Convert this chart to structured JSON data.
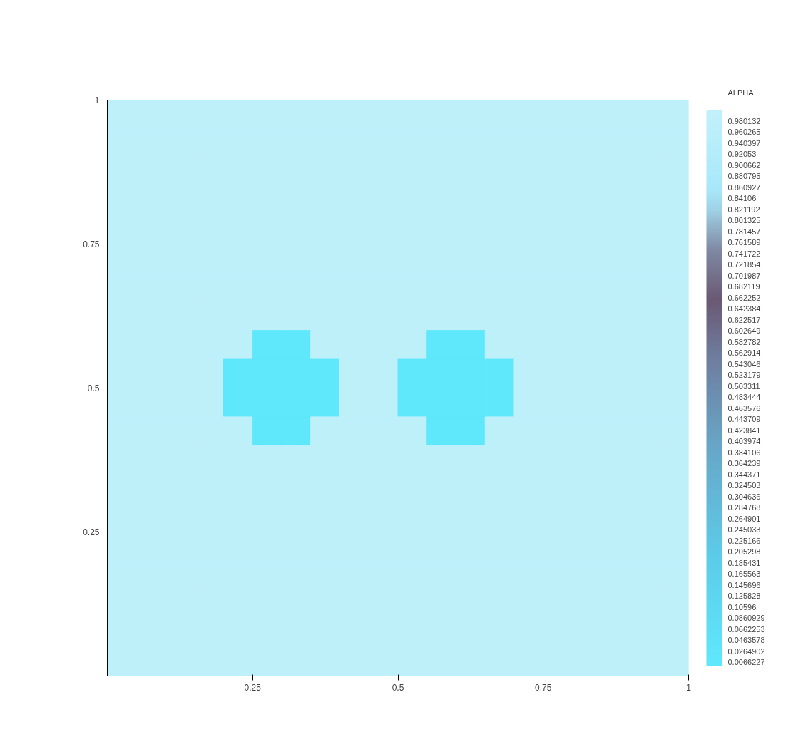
{
  "chart_data": {
    "type": "scatter",
    "marker": "square",
    "clabel": "ALPHA",
    "xlim": [
      0,
      1
    ],
    "xticks": [
      0.25,
      0.5,
      0.75,
      1
    ],
    "ylim": [
      0,
      1
    ],
    "yticks": [
      0.25,
      0.5,
      0.75,
      1
    ],
    "clim": [
      0,
      1
    ],
    "cticks": [
      0.980132,
      0.960265,
      0.940397,
      0.92053,
      0.900662,
      0.880795,
      0.860927,
      0.84106,
      0.821192,
      0.801325,
      0.781457,
      0.761589,
      0.741722,
      0.721854,
      0.701987,
      0.682119,
      0.662252,
      0.642384,
      0.622517,
      0.602649,
      0.582782,
      0.562914,
      0.543046,
      0.523179,
      0.503311,
      0.483444,
      0.463576,
      0.443709,
      0.423841,
      0.403974,
      0.384106,
      0.364239,
      0.344371,
      0.324503,
      0.304636,
      0.284768,
      0.264901,
      0.245033,
      0.225166,
      0.205298,
      0.185431,
      0.165563,
      0.145696,
      0.125828,
      0.10596,
      0.0860929,
      0.0662253,
      0.0463578,
      0.0264902,
      0.0066227
    ],
    "x": [
      0.025,
      0.075,
      0.125,
      0.175,
      0.225,
      0.275,
      0.325,
      0.375,
      0.425,
      0.475,
      0.525,
      0.575,
      0.625,
      0.675,
      0.725,
      0.775,
      0.825,
      0.875,
      0.925,
      0.975,
      0.025,
      0.075,
      0.125,
      0.175,
      0.225,
      0.275,
      0.325,
      0.375,
      0.425,
      0.475,
      0.525,
      0.575,
      0.625,
      0.675,
      0.725,
      0.775,
      0.825,
      0.875,
      0.925,
      0.975,
      0.025,
      0.075,
      0.125,
      0.175,
      0.225,
      0.275,
      0.325,
      0.375,
      0.425,
      0.475,
      0.525,
      0.575,
      0.625,
      0.675,
      0.725,
      0.775,
      0.825,
      0.875,
      0.925,
      0.975,
      0.025,
      0.075,
      0.125,
      0.175,
      0.225,
      0.275,
      0.325,
      0.375,
      0.425,
      0.475,
      0.525,
      0.575,
      0.625,
      0.675,
      0.725,
      0.775,
      0.825,
      0.875,
      0.925,
      0.975,
      0.025,
      0.075,
      0.125,
      0.175,
      0.225,
      0.275,
      0.325,
      0.375,
      0.425,
      0.475,
      0.525,
      0.575,
      0.625,
      0.675,
      0.725,
      0.775,
      0.825,
      0.875,
      0.925,
      0.975,
      0.025,
      0.075,
      0.125,
      0.175,
      0.225,
      0.275,
      0.325,
      0.375,
      0.425,
      0.475,
      0.525,
      0.575,
      0.625,
      0.675,
      0.725,
      0.775,
      0.825,
      0.875,
      0.925,
      0.975,
      0.025,
      0.075,
      0.125,
      0.175,
      0.225,
      0.275,
      0.325,
      0.375,
      0.425,
      0.475,
      0.525,
      0.575,
      0.625,
      0.675,
      0.725,
      0.775,
      0.825,
      0.875,
      0.925,
      0.975,
      0.025,
      0.075,
      0.125,
      0.175,
      0.225,
      0.275,
      0.325,
      0.375,
      0.425,
      0.475,
      0.525,
      0.575,
      0.625,
      0.675,
      0.725,
      0.775,
      0.825,
      0.875,
      0.925,
      0.975,
      0.025,
      0.075,
      0.125,
      0.175,
      0.225,
      0.275,
      0.325,
      0.375,
      0.425,
      0.475,
      0.525,
      0.575,
      0.625,
      0.675,
      0.725,
      0.775,
      0.825,
      0.875,
      0.925,
      0.975,
      0.025,
      0.075,
      0.125,
      0.175,
      0.225,
      0.275,
      0.325,
      0.375,
      0.425,
      0.475,
      0.525,
      0.575,
      0.625,
      0.675,
      0.725,
      0.775,
      0.825,
      0.875,
      0.925,
      0.975,
      0.025,
      0.075,
      0.125,
      0.175,
      0.225,
      0.275,
      0.325,
      0.375,
      0.425,
      0.475,
      0.525,
      0.575,
      0.625,
      0.675,
      0.725,
      0.775,
      0.825,
      0.875,
      0.925,
      0.975,
      0.025,
      0.075,
      0.125,
      0.175,
      0.225,
      0.275,
      0.325,
      0.375,
      0.425,
      0.475,
      0.525,
      0.575,
      0.625,
      0.675,
      0.725,
      0.775,
      0.825,
      0.875,
      0.925,
      0.975,
      0.025,
      0.075,
      0.125,
      0.175,
      0.225,
      0.275,
      0.325,
      0.375,
      0.425,
      0.475,
      0.525,
      0.575,
      0.625,
      0.675,
      0.725,
      0.775,
      0.825,
      0.875,
      0.925,
      0.975,
      0.025,
      0.075,
      0.125,
      0.175,
      0.225,
      0.275,
      0.325,
      0.375,
      0.425,
      0.475,
      0.525,
      0.575,
      0.625,
      0.675,
      0.725,
      0.775,
      0.825,
      0.875,
      0.925,
      0.975,
      0.025,
      0.075,
      0.125,
      0.175,
      0.225,
      0.275,
      0.325,
      0.375,
      0.425,
      0.475,
      0.525,
      0.575,
      0.625,
      0.675,
      0.725,
      0.775,
      0.825,
      0.875,
      0.925,
      0.975,
      0.025,
      0.075,
      0.125,
      0.175,
      0.225,
      0.275,
      0.325,
      0.375,
      0.425,
      0.475,
      0.525,
      0.575,
      0.625,
      0.675,
      0.725,
      0.775,
      0.825,
      0.875,
      0.925,
      0.975,
      0.025,
      0.075,
      0.125,
      0.175,
      0.225,
      0.275,
      0.325,
      0.375,
      0.425,
      0.475,
      0.525,
      0.575,
      0.625,
      0.675,
      0.725,
      0.775,
      0.825,
      0.875,
      0.925,
      0.975,
      0.025,
      0.075,
      0.125,
      0.175,
      0.225,
      0.275,
      0.325,
      0.375,
      0.425,
      0.475,
      0.525,
      0.575,
      0.625,
      0.675,
      0.725,
      0.775,
      0.825,
      0.875,
      0.925,
      0.975,
      0.025,
      0.075,
      0.125,
      0.175,
      0.225,
      0.275,
      0.325,
      0.375,
      0.425,
      0.475,
      0.525,
      0.575,
      0.625,
      0.675,
      0.725,
      0.775,
      0.825,
      0.875,
      0.925,
      0.975,
      0.025,
      0.075,
      0.125,
      0.175,
      0.225,
      0.275,
      0.325,
      0.375,
      0.425,
      0.475,
      0.525,
      0.575,
      0.625,
      0.675,
      0.725,
      0.775,
      0.825,
      0.875,
      0.925,
      0.975
    ],
    "values": [
      0.975,
      0.975,
      0.975,
      0.975,
      0.975,
      0.975,
      0.975,
      0.975,
      0.975,
      0.975,
      0.975,
      0.975,
      0.975,
      0.975,
      0.975,
      0.975,
      0.975,
      0.975,
      0.975,
      0.975,
      0.925,
      0.925,
      0.925,
      0.925,
      0.925,
      0.925,
      0.925,
      0.925,
      0.925,
      0.925,
      0.925,
      0.925,
      0.925,
      0.925,
      0.925,
      0.925,
      0.925,
      0.925,
      0.925,
      0.925,
      0.875,
      0.875,
      0.875,
      0.875,
      0.875,
      0.875,
      0.875,
      0.875,
      0.875,
      0.875,
      0.875,
      0.875,
      0.875,
      0.875,
      0.875,
      0.875,
      0.875,
      0.875,
      0.875,
      0.875,
      0.825,
      0.825,
      0.825,
      0.825,
      0.825,
      0.825,
      0.825,
      0.825,
      0.825,
      0.825,
      0.825,
      0.825,
      0.825,
      0.825,
      0.825,
      0.825,
      0.825,
      0.825,
      0.825,
      0.825,
      0.775,
      0.775,
      0.775,
      0.775,
      0.775,
      0.775,
      0.775,
      0.775,
      0.775,
      0.775,
      0.775,
      0.775,
      0.775,
      0.775,
      0.775,
      0.775,
      0.775,
      0.775,
      0.775,
      0.775,
      0.725,
      0.725,
      0.725,
      0.725,
      0.725,
      0.725,
      0.725,
      0.725,
      0.725,
      0.725,
      0.725,
      0.725,
      0.725,
      0.725,
      0.725,
      0.725,
      0.725,
      0.725,
      0.725,
      0.725,
      0.675,
      0.675,
      0.675,
      0.675,
      0.675,
      0.675,
      0.675,
      0.675,
      0.675,
      0.675,
      0.675,
      0.675,
      0.675,
      0.675,
      0.675,
      0.675,
      0.675,
      0.675,
      0.675,
      0.675,
      0.625,
      0.625,
      0.625,
      0.625,
      0.625,
      0.625,
      0.625,
      0.625,
      0.625,
      0.625,
      0.625,
      0.625,
      0.625,
      0.625,
      0.625,
      0.625,
      0.625,
      0.625,
      0.625,
      0.625,
      0.575,
      0.575,
      0.575,
      0.575,
      0.575,
      0.575,
      0.575,
      0.575,
      0.575,
      0.575,
      0.575,
      0.575,
      0.575,
      0.575,
      0.575,
      0.575,
      0.575,
      0.575,
      0.575,
      0.575,
      0.525,
      0.525,
      0.525,
      0.525,
      0.525,
      0.525,
      0.525,
      0.525,
      0.525,
      0.525,
      0.525,
      0.525,
      0.525,
      0.525,
      0.525,
      0.525,
      0.525,
      0.525,
      0.525,
      0.525,
      0.475,
      0.475,
      0.475,
      0.475,
      0.475,
      0.475,
      0.475,
      0.475,
      0.475,
      0.475,
      0.475,
      0.475,
      0.475,
      0.475,
      0.475,
      0.475,
      0.475,
      0.475,
      0.475,
      0.475,
      0.425,
      0.425,
      0.425,
      0.425,
      0.425,
      0.425,
      0.425,
      0.425,
      0.425,
      0.425,
      0.425,
      0.425,
      0.425,
      0.425,
      0.425,
      0.425,
      0.425,
      0.425,
      0.425,
      0.425,
      0.375,
      0.375,
      0.375,
      0.375,
      0.375,
      0.375,
      0.375,
      0.375,
      0.375,
      0.375,
      0.375,
      0.375,
      0.375,
      0.375,
      0.375,
      0.375,
      0.375,
      0.375,
      0.375,
      0.375,
      0.325,
      0.325,
      0.325,
      0.325,
      0.325,
      0.325,
      0.325,
      0.325,
      0.325,
      0.325,
      0.325,
      0.325,
      0.325,
      0.325,
      0.325,
      0.325,
      0.325,
      0.325,
      0.325,
      0.325,
      0.275,
      0.275,
      0.275,
      0.275,
      0.275,
      0.275,
      0.275,
      0.275,
      0.275,
      0.275,
      0.275,
      0.275,
      0.275,
      0.275,
      0.275,
      0.275,
      0.275,
      0.275,
      0.275,
      0.275,
      0.225,
      0.225,
      0.225,
      0.225,
      0.225,
      0.225,
      0.225,
      0.225,
      0.225,
      0.225,
      0.225,
      0.225,
      0.225,
      0.225,
      0.225,
      0.225,
      0.225,
      0.225,
      0.225,
      0.225,
      0.175,
      0.175,
      0.175,
      0.175,
      0.175,
      0.175,
      0.175,
      0.175,
      0.175,
      0.175,
      0.175,
      0.175,
      0.175,
      0.175,
      0.175,
      0.175,
      0.175,
      0.175,
      0.175,
      0.175,
      0.125,
      0.125,
      0.125,
      0.125,
      0.125,
      0.125,
      0.125,
      0.125,
      0.125,
      0.125,
      0.125,
      0.125,
      0.125,
      0.125,
      0.125,
      0.125,
      0.125,
      0.125,
      0.125,
      0.125,
      0.075,
      0.075,
      0.075,
      0.075,
      0.075,
      0.075,
      0.075,
      0.075,
      0.075,
      0.075,
      0.075,
      0.075,
      0.075,
      0.075,
      0.075,
      0.075,
      0.075,
      0.075,
      0.075,
      0.075,
      0.025,
      0.025,
      0.025,
      0.025,
      0.025,
      0.025,
      0.025,
      0.025,
      0.025,
      0.025,
      0.025,
      0.025,
      0.025,
      0.025,
      0.025,
      0.025,
      0.025,
      0.025,
      0.025,
      0.025
    ],
    "cvalues": [
      0.98,
      0.98,
      0.98,
      0.98,
      0.98,
      0.98,
      0.98,
      0.98,
      0.98,
      0.98,
      0.98,
      0.98,
      0.98,
      0.98,
      0.98,
      0.98,
      0.98,
      0.98,
      0.98,
      0.98,
      0.98,
      0.98,
      0.98,
      0.98,
      0.98,
      0.98,
      0.98,
      0.98,
      0.98,
      0.98,
      0.98,
      0.98,
      0.98,
      0.98,
      0.98,
      0.98,
      0.98,
      0.98,
      0.98,
      0.98,
      0.98,
      0.98,
      0.98,
      0.98,
      0.98,
      0.98,
      0.98,
      0.98,
      0.98,
      0.98,
      0.98,
      0.98,
      0.98,
      0.98,
      0.98,
      0.98,
      0.98,
      0.98,
      0.98,
      0.98,
      0.98,
      0.98,
      0.98,
      0.98,
      0.98,
      0.98,
      0.98,
      0.98,
      0.98,
      0.98,
      0.98,
      0.98,
      0.98,
      0.98,
      0.98,
      0.98,
      0.98,
      0.98,
      0.98,
      0.98,
      0.98,
      0.98,
      0.98,
      0.98,
      0.98,
      0.98,
      0.98,
      0.98,
      0.98,
      0.98,
      0.98,
      0.98,
      0.98,
      0.98,
      0.98,
      0.98,
      0.98,
      0.98,
      0.98,
      0.98,
      0.98,
      0.98,
      0.98,
      0.98,
      0.98,
      0.98,
      0.98,
      0.98,
      0.98,
      0.98,
      0.98,
      0.98,
      0.98,
      0.98,
      0.98,
      0.98,
      0.98,
      0.98,
      0.98,
      0.98,
      0.98,
      0.98,
      0.98,
      0.98,
      0.98,
      0.98,
      0.98,
      0.98,
      0.98,
      0.98,
      0.98,
      0.98,
      0.98,
      0.98,
      0.98,
      0.98,
      0.98,
      0.98,
      0.98,
      0.98,
      0.98,
      0.98,
      0.98,
      0.98,
      0.98,
      0.98,
      0.98,
      0.98,
      0.98,
      0.98,
      0.98,
      0.98,
      0.98,
      0.98,
      0.98,
      0.98,
      0.98,
      0.98,
      0.98,
      0.98,
      0.98,
      0.98,
      0.98,
      0.98,
      0.98,
      0.01,
      0.01,
      0.98,
      0.98,
      0.98,
      0.98,
      0.01,
      0.01,
      0.98,
      0.98,
      0.98,
      0.98,
      0.98,
      0.98,
      0.98,
      0.98,
      0.98,
      0.98,
      0.98,
      0.01,
      0.01,
      0.01,
      0.01,
      0.98,
      0.98,
      0.01,
      0.01,
      0.01,
      0.01,
      0.98,
      0.98,
      0.98,
      0.98,
      0.98,
      0.98,
      0.98,
      0.98,
      0.98,
      0.98,
      0.01,
      0.01,
      0.01,
      0.01,
      0.98,
      0.98,
      0.01,
      0.01,
      0.01,
      0.01,
      0.98,
      0.98,
      0.98,
      0.98,
      0.98,
      0.98,
      0.98,
      0.98,
      0.98,
      0.98,
      0.98,
      0.01,
      0.01,
      0.98,
      0.98,
      0.98,
      0.98,
      0.01,
      0.01,
      0.98,
      0.98,
      0.98,
      0.98,
      0.98,
      0.98,
      0.98,
      0.98,
      0.98,
      0.98,
      0.98,
      0.98,
      0.98,
      0.98,
      0.98,
      0.98,
      0.98,
      0.98,
      0.98,
      0.98,
      0.98,
      0.98,
      0.98,
      0.98,
      0.98,
      0.98,
      0.98,
      0.98,
      0.98,
      0.98,
      0.98,
      0.98,
      0.98,
      0.98,
      0.98,
      0.98,
      0.98,
      0.98,
      0.98,
      0.98,
      0.98,
      0.98,
      0.98,
      0.98,
      0.98,
      0.98,
      0.98,
      0.98,
      0.98,
      0.98,
      0.98,
      0.98,
      0.98,
      0.98,
      0.98,
      0.98,
      0.98,
      0.98,
      0.98,
      0.98,
      0.98,
      0.98,
      0.98,
      0.98,
      0.98,
      0.98,
      0.98,
      0.98,
      0.98,
      0.98,
      0.98,
      0.98,
      0.98,
      0.98,
      0.98,
      0.98,
      0.98,
      0.98,
      0.98,
      0.98,
      0.98,
      0.98,
      0.98,
      0.98,
      0.98,
      0.98,
      0.98,
      0.98,
      0.98,
      0.98,
      0.98,
      0.98,
      0.98,
      0.98,
      0.98,
      0.98,
      0.98,
      0.98,
      0.98,
      0.98,
      0.98,
      0.98,
      0.98,
      0.98,
      0.98,
      0.98,
      0.98,
      0.98,
      0.98,
      0.98,
      0.98,
      0.98,
      0.98,
      0.98,
      0.98,
      0.98,
      0.98,
      0.98,
      0.98,
      0.98,
      0.98,
      0.98,
      0.98,
      0.98,
      0.98,
      0.98,
      0.98,
      0.98,
      0.98,
      0.98,
      0.98,
      0.98,
      0.98,
      0.98,
      0.98,
      0.98,
      0.98,
      0.98,
      0.98,
      0.98,
      0.98,
      0.98,
      0.98,
      0.98,
      0.98,
      0.98,
      0.98,
      0.98,
      0.98,
      0.98,
      0.98,
      0.98,
      0.98,
      0.98,
      0.98,
      0.98,
      0.98,
      0.98,
      0.98,
      0.98,
      0.98,
      0.98,
      0.98,
      0.98,
      0.98,
      0.98,
      0.98
    ]
  }
}
